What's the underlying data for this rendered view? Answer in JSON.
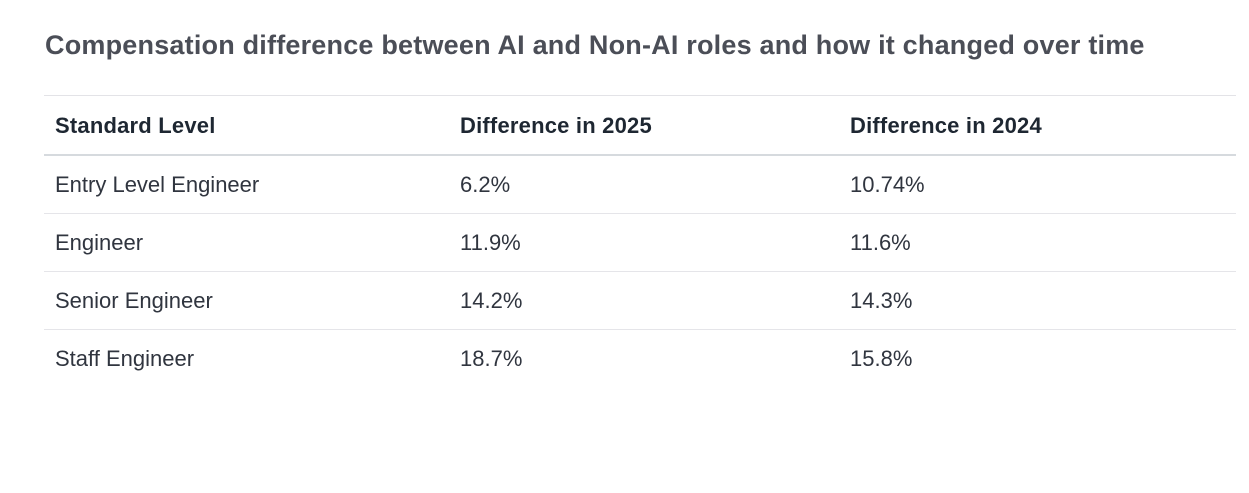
{
  "page": {
    "title": "Compensation difference between AI and Non-AI roles and how it changed over time"
  },
  "table": {
    "columns": [
      "Standard Level",
      "Difference in 2025",
      "Difference in 2024"
    ],
    "rows": [
      {
        "level": "Entry Level Engineer",
        "diff_2025": "6.2%",
        "diff_2024": "10.74%"
      },
      {
        "level": "Engineer",
        "diff_2025": "11.9%",
        "diff_2024": "11.6%"
      },
      {
        "level": "Senior Engineer",
        "diff_2025": "14.2%",
        "diff_2024": "14.3%"
      },
      {
        "level": "Staff Engineer",
        "diff_2025": "18.7%",
        "diff_2024": "15.8%"
      }
    ]
  },
  "colors": {
    "title_text": "#4b4e57",
    "header_text": "#1e2732",
    "cell_text": "#30353f",
    "header_border": "#d6dade",
    "row_border": "#e5e5e9",
    "background": "#ffffff"
  }
}
